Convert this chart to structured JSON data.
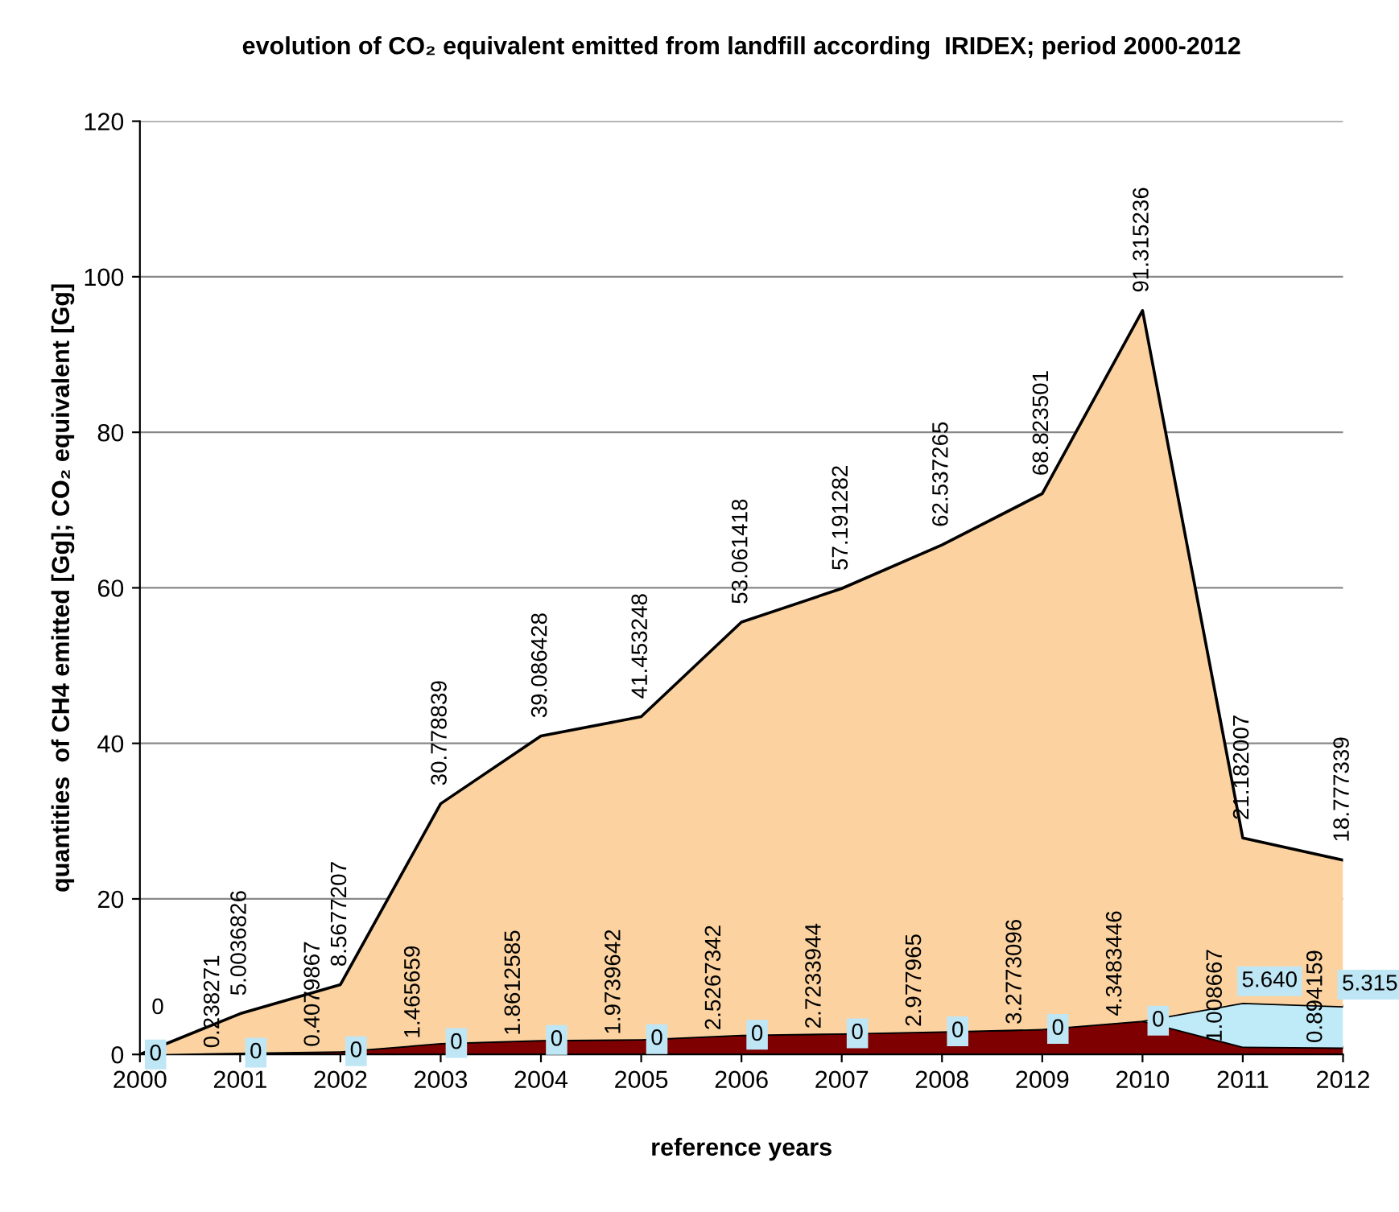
{
  "chart_data": {
    "type": "area",
    "stacked": true,
    "title": "evolution of CO₂ equivalent emitted from landfill according  IRIDEX; period 2000-2012",
    "xlabel": "reference years",
    "ylabel": "quantities  of CH4 emitted [Gg]; CO₂ equivalent [Gg]",
    "x": [
      2000,
      2001,
      2002,
      2003,
      2004,
      2005,
      2006,
      2007,
      2008,
      2009,
      2010,
      2011,
      2012
    ],
    "xlim": [
      2000,
      2012
    ],
    "xticks": [
      2000,
      2001,
      2002,
      2003,
      2004,
      2005,
      2006,
      2007,
      2008,
      2009,
      2010,
      2011,
      2012
    ],
    "ylim": [
      0,
      120
    ],
    "yticks": [
      0,
      20,
      40,
      60,
      80,
      100,
      120
    ],
    "grid": "y",
    "legend": false,
    "series": [
      {
        "color": "#7f0000",
        "values": [
          0,
          0.238271,
          0.4079867,
          1.465659,
          1.8612585,
          1.9739642,
          2.5267342,
          2.7233944,
          2.977965,
          3.2773096,
          4.3483446,
          1.008667,
          0.894159
        ],
        "value_labels": [
          null,
          "0.238271",
          "0.4079867",
          "1.465659",
          "1.8612585",
          "1.9739642",
          "2.5267342",
          "2.7233944",
          "2.977965",
          "3.2773096",
          "4.3483446",
          "1.008667",
          "0.894159"
        ]
      },
      {
        "color": "#bfeaf7",
        "values": [
          0,
          0,
          0,
          0,
          0,
          0,
          0,
          0,
          0,
          0,
          0,
          5.64,
          5.315
        ],
        "value_labels": [
          "0",
          "0",
          "0",
          "0",
          "0",
          "0",
          "0",
          "0",
          "0",
          "0",
          "0",
          "5.640",
          "5.315"
        ]
      },
      {
        "color": "#fcd3a0",
        "values": [
          0,
          5.0036826,
          8.5677207,
          30.778839,
          39.086428,
          41.453248,
          53.061418,
          57.191282,
          62.537265,
          68.823501,
          91.315236,
          21.182007,
          18.777339
        ],
        "value_labels": [
          "0",
          "5.0036826",
          "8.5677207",
          "30.778839",
          "39.086428",
          "41.453248",
          "53.061418",
          "57.191282",
          "62.537265",
          "68.823501",
          "91.315236",
          "21.182007",
          "18.777339"
        ]
      }
    ]
  }
}
